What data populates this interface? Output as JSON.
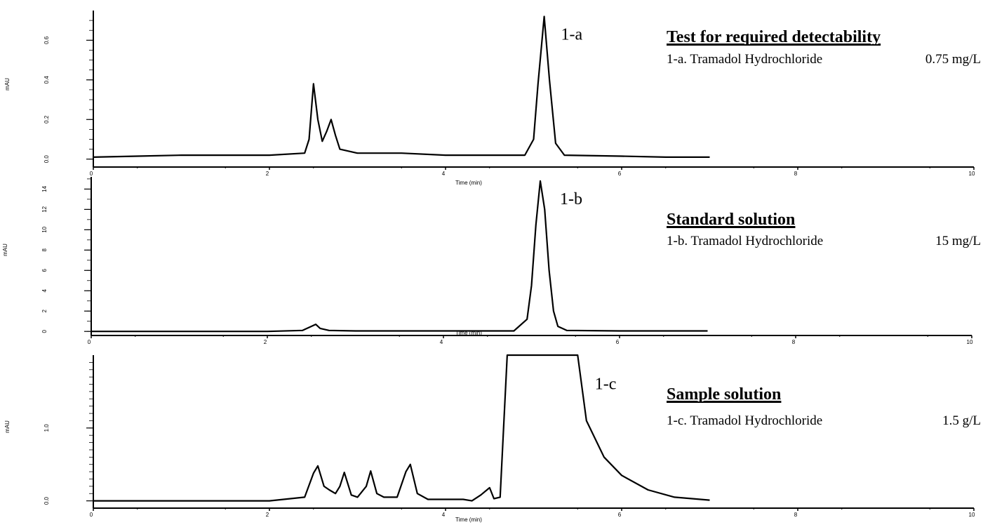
{
  "chart_data": [
    {
      "type": "line",
      "xlabel": "Time (min)",
      "ylabel": "mAU",
      "xlim": [
        0,
        10
      ],
      "ylim": [
        -0.04,
        0.75
      ],
      "x_ticks": [
        "0",
        "2",
        "4",
        "6",
        "8",
        "10"
      ],
      "y_ticks": [
        "0.0",
        "0.2",
        "0.4",
        "0.6"
      ],
      "y_tick_values": [
        0.0,
        0.2,
        0.4,
        0.6
      ],
      "series": [
        {
          "x": [
            0.0,
            0.5,
            1.0,
            1.5,
            2.0,
            2.4,
            2.45,
            2.5,
            2.55,
            2.6,
            2.65,
            2.7,
            2.75,
            2.8,
            3.0,
            3.5,
            4.0,
            4.5,
            4.9,
            5.0,
            5.05,
            5.12,
            5.18,
            5.25,
            5.35,
            6.0,
            6.5,
            7.0
          ],
          "y": [
            0.01,
            0.015,
            0.02,
            0.02,
            0.02,
            0.03,
            0.1,
            0.38,
            0.2,
            0.09,
            0.14,
            0.2,
            0.12,
            0.05,
            0.03,
            0.03,
            0.02,
            0.02,
            0.02,
            0.1,
            0.38,
            0.72,
            0.4,
            0.08,
            0.02,
            0.015,
            0.01,
            0.01
          ]
        }
      ],
      "peak_label": "1-a",
      "peak_x": 5.12,
      "peak_y": 0.72,
      "heading": "Test for required detectability",
      "description": "1-a. Tramadol Hydrochloride",
      "concentration": "0.75 mg/L"
    },
    {
      "type": "line",
      "xlabel": "Time (min)",
      "ylabel": "mAU",
      "xlim": [
        0,
        10
      ],
      "ylim": [
        -0.4,
        15.2
      ],
      "x_ticks": [
        "0",
        "2",
        "4",
        "6",
        "8",
        "10"
      ],
      "y_ticks": [
        "0",
        "2",
        "4",
        "6",
        "8",
        "10",
        "12",
        "14"
      ],
      "y_tick_values": [
        0,
        2,
        4,
        6,
        8,
        10,
        12,
        14
      ],
      "series": [
        {
          "x": [
            0.0,
            1.0,
            2.0,
            2.4,
            2.5,
            2.55,
            2.6,
            2.7,
            3.0,
            4.0,
            4.8,
            4.95,
            5.0,
            5.05,
            5.1,
            5.15,
            5.2,
            5.25,
            5.3,
            5.4,
            6.0,
            7.0
          ],
          "y": [
            0.0,
            0.0,
            0.0,
            0.1,
            0.5,
            0.7,
            0.3,
            0.1,
            0.05,
            0.05,
            0.05,
            1.2,
            4.5,
            10.5,
            14.8,
            12.0,
            6.0,
            2.0,
            0.5,
            0.1,
            0.05,
            0.05
          ]
        }
      ],
      "peak_label": "1-b",
      "peak_x": 5.1,
      "peak_y": 14.8,
      "heading": "Standard solution",
      "description": "1-b. Tramadol Hydrochloride",
      "concentration": "15 mg/L"
    },
    {
      "type": "line",
      "xlabel": "Time (min)",
      "ylabel": "mAU",
      "xlim": [
        0,
        10
      ],
      "ylim": [
        -0.1,
        2.0
      ],
      "x_ticks": [
        "0",
        "2",
        "4",
        "6",
        "8",
        "10"
      ],
      "y_ticks": [
        "0.0",
        "1.0"
      ],
      "y_tick_values": [
        0.0,
        1.0
      ],
      "series": [
        {
          "x": [
            0.0,
            1.0,
            2.0,
            2.4,
            2.5,
            2.55,
            2.62,
            2.68,
            2.75,
            2.8,
            2.85,
            2.93,
            3.0,
            3.1,
            3.15,
            3.22,
            3.3,
            3.45,
            3.55,
            3.6,
            3.68,
            3.8,
            4.2,
            4.3,
            4.4,
            4.5,
            4.55,
            4.62,
            4.7,
            4.75,
            4.8,
            5.0,
            5.5,
            5.6,
            5.8,
            6.0,
            6.3,
            6.6,
            7.0
          ],
          "y": [
            0.0,
            0.0,
            0.0,
            0.05,
            0.38,
            0.48,
            0.2,
            0.15,
            0.1,
            0.2,
            0.39,
            0.08,
            0.05,
            0.2,
            0.41,
            0.1,
            0.05,
            0.05,
            0.4,
            0.5,
            0.1,
            0.02,
            0.02,
            0.0,
            0.08,
            0.18,
            0.03,
            0.05,
            2.0,
            2.0,
            2.0,
            2.0,
            2.0,
            1.1,
            0.6,
            0.35,
            0.15,
            0.05,
            0.01
          ]
        }
      ],
      "peak_label": "1-c",
      "peak_x": 5.6,
      "peak_y": 1.85,
      "heading": "Sample solution",
      "description": "1-c. Tramadol Hydrochloride",
      "concentration": "1.5 g/L"
    }
  ]
}
